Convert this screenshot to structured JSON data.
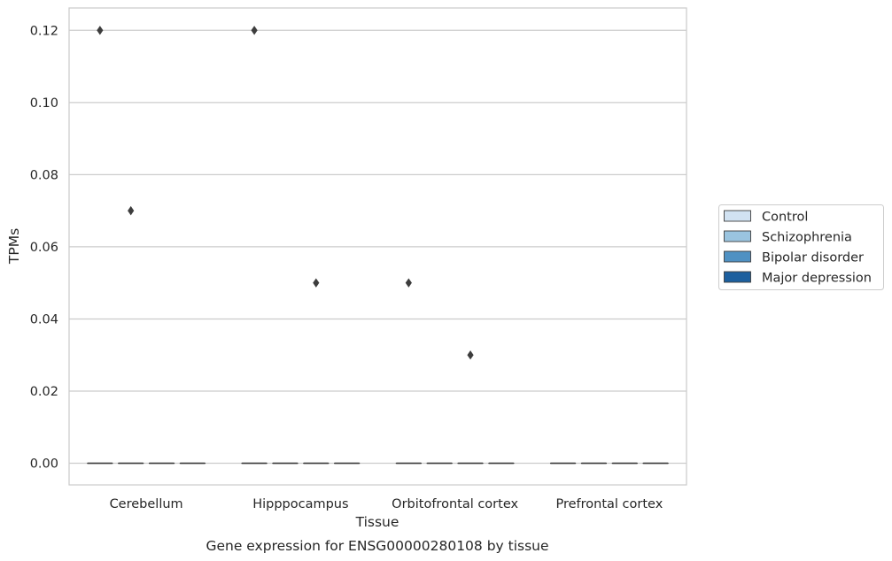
{
  "chart_data": {
    "type": "box",
    "caption": "Gene expression for ENSG00000280108 by tissue",
    "xlabel": "Tissue",
    "ylabel": "TPMs",
    "categories": [
      "Cerebellum",
      "Hipppocampus",
      "Orbitofrontal cortex",
      "Prefrontal cortex"
    ],
    "ylim": [
      -0.006,
      0.1262
    ],
    "yticks": [
      0.0,
      0.02,
      0.04,
      0.06,
      0.08,
      0.1,
      0.12
    ],
    "ytick_labels": [
      "0.00",
      "0.02",
      "0.04",
      "0.06",
      "0.08",
      "0.10",
      "0.12"
    ],
    "grid": "horizontal",
    "legend_position": "right",
    "series": [
      {
        "name": "Control",
        "color": "#d1e2f2",
        "boxes": [
          {
            "q1": 0,
            "median": 0,
            "q3": 0,
            "whisker_low": 0,
            "whisker_high": 0,
            "outliers": [
              0.12
            ]
          },
          {
            "q1": 0,
            "median": 0,
            "q3": 0,
            "whisker_low": 0,
            "whisker_high": 0,
            "outliers": [
              0.12
            ]
          },
          {
            "q1": 0,
            "median": 0,
            "q3": 0,
            "whisker_low": 0,
            "whisker_high": 0,
            "outliers": [
              0.05
            ]
          },
          {
            "q1": 0,
            "median": 0,
            "q3": 0,
            "whisker_low": 0,
            "whisker_high": 0,
            "outliers": []
          }
        ]
      },
      {
        "name": "Schizophrenia",
        "color": "#9ac4df",
        "boxes": [
          {
            "q1": 0,
            "median": 0,
            "q3": 0,
            "whisker_low": 0,
            "whisker_high": 0,
            "outliers": [
              0.07
            ]
          },
          {
            "q1": 0,
            "median": 0,
            "q3": 0,
            "whisker_low": 0,
            "whisker_high": 0,
            "outliers": []
          },
          {
            "q1": 0,
            "median": 0,
            "q3": 0,
            "whisker_low": 0,
            "whisker_high": 0,
            "outliers": []
          },
          {
            "q1": 0,
            "median": 0,
            "q3": 0,
            "whisker_low": 0,
            "whisker_high": 0,
            "outliers": []
          }
        ]
      },
      {
        "name": "Bipolar disorder",
        "color": "#4f91c3",
        "boxes": [
          {
            "q1": 0,
            "median": 0,
            "q3": 0,
            "whisker_low": 0,
            "whisker_high": 0,
            "outliers": []
          },
          {
            "q1": 0,
            "median": 0,
            "q3": 0,
            "whisker_low": 0,
            "whisker_high": 0,
            "outliers": [
              0.05
            ]
          },
          {
            "q1": 0,
            "median": 0,
            "q3": 0,
            "whisker_low": 0,
            "whisker_high": 0,
            "outliers": [
              0.03
            ]
          },
          {
            "q1": 0,
            "median": 0,
            "q3": 0,
            "whisker_low": 0,
            "whisker_high": 0,
            "outliers": []
          }
        ]
      },
      {
        "name": "Major depression",
        "color": "#1c5f9e",
        "boxes": [
          {
            "q1": 0,
            "median": 0,
            "q3": 0,
            "whisker_low": 0,
            "whisker_high": 0,
            "outliers": []
          },
          {
            "q1": 0,
            "median": 0,
            "q3": 0,
            "whisker_low": 0,
            "whisker_high": 0,
            "outliers": []
          },
          {
            "q1": 0,
            "median": 0,
            "q3": 0,
            "whisker_low": 0,
            "whisker_high": 0,
            "outliers": []
          },
          {
            "q1": 0,
            "median": 0,
            "q3": 0,
            "whisker_low": 0,
            "whisker_high": 0,
            "outliers": []
          }
        ]
      }
    ],
    "style": {
      "grid_color": "#cccccc",
      "frame_color": "#cccccc",
      "line_color": "#3d3d3d",
      "marker_color": "#3d3d3d"
    }
  }
}
